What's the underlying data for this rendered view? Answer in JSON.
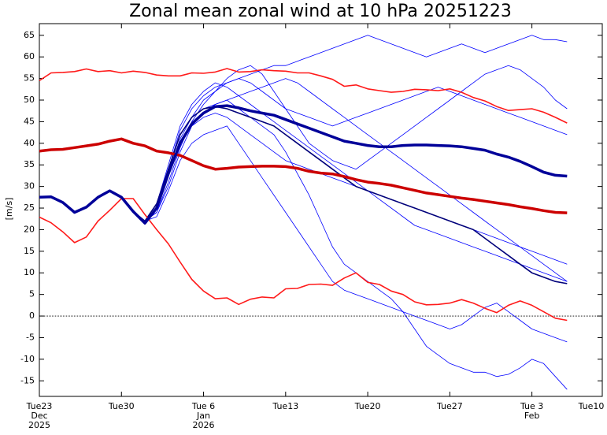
{
  "chart_data": {
    "type": "line",
    "title": "Zonal mean zonal wind at 10 hPa 20251223",
    "y_label": "[m/s]",
    "x": [
      0,
      1,
      2,
      3,
      4,
      5,
      6,
      7,
      8,
      9,
      10,
      11,
      12,
      13,
      14,
      15,
      16,
      17,
      18,
      19,
      20,
      21,
      22,
      23,
      24,
      25,
      26,
      27,
      28,
      29,
      30,
      31,
      32,
      33,
      34,
      35,
      36,
      37,
      38,
      39,
      40,
      41,
      42,
      43,
      44,
      45
    ],
    "xlim": [
      0,
      48
    ],
    "xticks": [
      {
        "value": 0,
        "label": "Tue23"
      },
      {
        "value": 7,
        "label": "Tue30"
      },
      {
        "value": 14,
        "label": "Tue 6"
      },
      {
        "value": 21,
        "label": "Tue13"
      },
      {
        "value": 28,
        "label": "Tue20"
      },
      {
        "value": 35,
        "label": "Tue27"
      },
      {
        "value": 42,
        "label": "Tue 3"
      },
      {
        "value": 49,
        "label": "Tue10"
      }
    ],
    "x_month_labels": [
      {
        "value": 0,
        "label": "Dec"
      },
      {
        "value": 14,
        "label": "Jan"
      },
      {
        "value": 42,
        "label": "Feb"
      }
    ],
    "x_year_labels": [
      {
        "value": 0,
        "label": "2025"
      },
      {
        "value": 14,
        "label": "2026"
      }
    ],
    "ylim": [
      -18.6,
      67.7
    ],
    "yticks": [
      -15,
      -10,
      -5,
      0,
      5,
      10,
      15,
      20,
      25,
      30,
      35,
      40,
      45,
      50,
      55,
      60,
      65
    ],
    "zero_line": true,
    "series": [
      {
        "color": "#0000ff",
        "linewidth": 0.8,
        "values": [
          27.5,
          27.6,
          26.3,
          24.0,
          25.2,
          27.5,
          29.0,
          27.5,
          24.2,
          22.0,
          26,
          34,
          42,
          46,
          48,
          49,
          50,
          48,
          46,
          44,
          42,
          38,
          33,
          28,
          22,
          16,
          12,
          10,
          8,
          6,
          4,
          1,
          -3,
          -7,
          -9,
          -11,
          -12,
          -13,
          -13,
          -14,
          -13.5,
          -12,
          -10,
          -11,
          -14,
          -17
        ]
      },
      {
        "color": "#0000ff",
        "linewidth": 0.8,
        "values": [
          27.5,
          27.6,
          26.3,
          24.0,
          25.2,
          27.5,
          29.0,
          27.5,
          24.2,
          22.0,
          25,
          33,
          41,
          46,
          50,
          52,
          54,
          55,
          56,
          57,
          58,
          58,
          59,
          60,
          61,
          62,
          63,
          64,
          65,
          64,
          63,
          62,
          61,
          60,
          61,
          62,
          63,
          62,
          61,
          62,
          63,
          64,
          65,
          64,
          64,
          63.5
        ]
      },
      {
        "color": "#0000ff",
        "linewidth": 0.8,
        "values": [
          27.5,
          27.6,
          26.3,
          24.0,
          25.2,
          27.5,
          29.0,
          27.5,
          24.2,
          22.0,
          24,
          30,
          38,
          44,
          47,
          49,
          50,
          51,
          52,
          53,
          54,
          55,
          54,
          52,
          50,
          48,
          46,
          44,
          42,
          40,
          38,
          36,
          34,
          32,
          30,
          28,
          26,
          24,
          22,
          20,
          18,
          16,
          14,
          12,
          10,
          8
        ]
      },
      {
        "color": "#0000ff",
        "linewidth": 0.8,
        "values": [
          27.5,
          27.6,
          26.3,
          24.0,
          25.2,
          27.5,
          29.0,
          27.5,
          24.2,
          22.0,
          26,
          34,
          43,
          48,
          51,
          53,
          54,
          55,
          54,
          52,
          50,
          48,
          47,
          46,
          45,
          44,
          45,
          46,
          47,
          48,
          49,
          50,
          51,
          52,
          53,
          52,
          51,
          50,
          49,
          48,
          47,
          46,
          45,
          44,
          43,
          42
        ]
      },
      {
        "color": "#0000ff",
        "linewidth": 0.8,
        "values": [
          27.5,
          27.6,
          26.3,
          24.0,
          25.2,
          27.5,
          29.0,
          27.5,
          24.2,
          22.0,
          25,
          33,
          40,
          44,
          46,
          47,
          46,
          44,
          42,
          40,
          38,
          36,
          35,
          34,
          33,
          32,
          31,
          30,
          29,
          28,
          27,
          26,
          25,
          24,
          23,
          22,
          21,
          20,
          19,
          18,
          17,
          16,
          15,
          14,
          13,
          12
        ]
      },
      {
        "color": "#0000ff",
        "linewidth": 0.8,
        "values": [
          27.5,
          27.6,
          26.3,
          24.0,
          25.2,
          27.5,
          29.0,
          27.5,
          24.2,
          22.0,
          24,
          31,
          39,
          45,
          49,
          52,
          55,
          57,
          58,
          56,
          52,
          48,
          44,
          40,
          38,
          36,
          35,
          34,
          36,
          38,
          40,
          42,
          44,
          46,
          48,
          50,
          52,
          54,
          56,
          57,
          58,
          57,
          55,
          53,
          50,
          48
        ]
      },
      {
        "color": "#0000ff",
        "linewidth": 0.8,
        "values": [
          27.5,
          27.6,
          26.3,
          24.0,
          25.2,
          27.5,
          29.0,
          27.5,
          24.2,
          22.0,
          23,
          29,
          36,
          40,
          42,
          43,
          44,
          40,
          36,
          32,
          28,
          24,
          20,
          16,
          12,
          8,
          6,
          5,
          4,
          3,
          2,
          1,
          0,
          -1,
          -2,
          -3,
          -2,
          0,
          2,
          3,
          1,
          -1,
          -3,
          -4,
          -5,
          -6
        ]
      },
      {
        "color": "#0000ff",
        "linewidth": 0.8,
        "values": [
          27.5,
          27.6,
          26.3,
          24.0,
          25.2,
          27.5,
          29.0,
          27.5,
          24.2,
          22.0,
          26,
          35,
          44,
          49,
          52,
          54,
          53,
          51,
          49,
          47,
          45,
          43,
          41,
          39,
          37,
          35,
          33,
          31,
          29,
          27,
          25,
          23,
          21,
          20,
          19,
          18,
          17,
          16,
          15,
          14,
          13,
          12,
          11,
          10,
          9,
          8
        ]
      },
      {
        "color": "#00007a",
        "linewidth": 1.6,
        "values": [
          27.5,
          27.6,
          26.3,
          24.0,
          25.2,
          27.5,
          29.0,
          27.5,
          24.2,
          22.0,
          26,
          34,
          42,
          46,
          48,
          48.5,
          48,
          47,
          46,
          45,
          44,
          42,
          40,
          38,
          36,
          34,
          32,
          30,
          29,
          28,
          27,
          26,
          25,
          24,
          23,
          22,
          21,
          20,
          18,
          16,
          14,
          12,
          10,
          9,
          8,
          7.5
        ]
      },
      {
        "color": "#ff1a1a",
        "linewidth": 1.6,
        "values": [
          54.5,
          56.3,
          56.4,
          56.6,
          57.2,
          56.6,
          56.8,
          56.3,
          56.7,
          56.4,
          55.8,
          55.6,
          55.6,
          56.3,
          56.2,
          56.5,
          57.3,
          56.5,
          56.6,
          57.0,
          56.8,
          56.7,
          56.3,
          56.3,
          55.6,
          54.8,
          53.2,
          53.5,
          52.6,
          52.2,
          51.8,
          52.0,
          52.5,
          52.4,
          52.2,
          52.6,
          51.8,
          50.6,
          49.8,
          48.5,
          47.6,
          47.8,
          48.0,
          47.2,
          46.0,
          44.7
        ]
      },
      {
        "color": "#ff1a1a",
        "linewidth": 1.6,
        "values": [
          22.9,
          21.6,
          19.5,
          17.0,
          18.3,
          22.0,
          24.5,
          27.2,
          27.2,
          23.5,
          20.0,
          16.7,
          12.5,
          8.5,
          5.8,
          4.0,
          4.2,
          2.7,
          3.9,
          4.4,
          4.2,
          6.3,
          6.4,
          7.3,
          7.4,
          7.1,
          8.8,
          10.0,
          7.8,
          7.3,
          5.8,
          5.0,
          3.3,
          2.6,
          2.7,
          3.0,
          3.8,
          3.0,
          1.8,
          0.8,
          2.5,
          3.5,
          2.5,
          1.0,
          -0.5,
          -1.0
        ]
      },
      {
        "color": "#cc0000",
        "linewidth": 3.5,
        "values": [
          38.2,
          38.5,
          38.6,
          39.0,
          39.4,
          39.8,
          40.5,
          41.0,
          40.0,
          39.4,
          38.2,
          37.8,
          37.2,
          36.0,
          34.8,
          34.0,
          34.2,
          34.5,
          34.6,
          34.7,
          34.7,
          34.6,
          34.2,
          33.5,
          33.1,
          32.9,
          32.3,
          31.6,
          31.0,
          30.7,
          30.3,
          29.7,
          29.1,
          28.5,
          28.1,
          27.7,
          27.3,
          27.0,
          26.6,
          26.2,
          25.8,
          25.3,
          24.9,
          24.4,
          24.0,
          23.9
        ]
      },
      {
        "color": "#000099",
        "linewidth": 3.5,
        "values": [
          27.5,
          27.6,
          26.3,
          24.0,
          25.2,
          27.5,
          29.0,
          27.5,
          24.2,
          21.5,
          25,
          33,
          40,
          44.5,
          47,
          48.5,
          48.7,
          48.2,
          47.5,
          47,
          46.5,
          45.5,
          44.5,
          43.5,
          42.5,
          41.5,
          40.5,
          40,
          39.5,
          39.2,
          39.2,
          39.5,
          39.6,
          39.6,
          39.5,
          39.4,
          39.2,
          38.8,
          38.4,
          37.5,
          36.8,
          35.8,
          34.6,
          33.3,
          32.6,
          32.4
        ]
      }
    ]
  }
}
